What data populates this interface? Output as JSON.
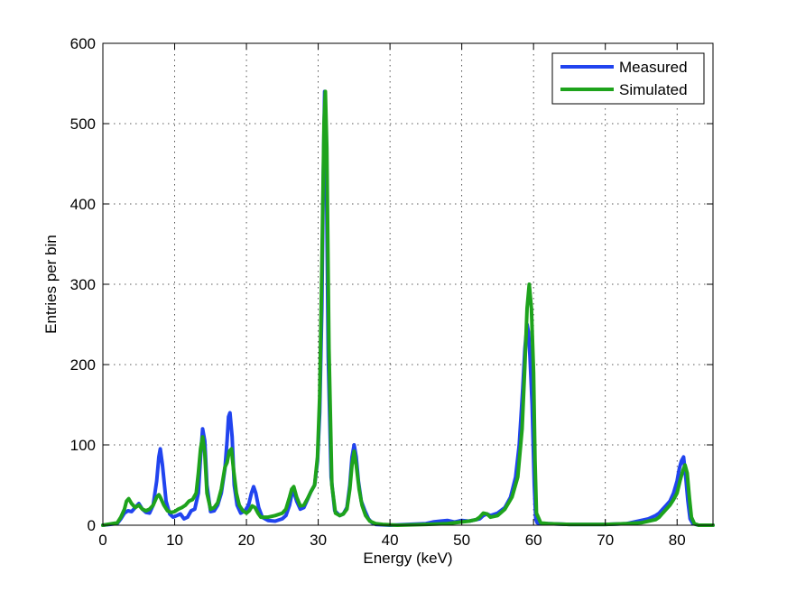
{
  "chart_data": {
    "type": "line",
    "xlabel": "Energy (keV)",
    "ylabel": "Entries per bin",
    "xlim": [
      0,
      85
    ],
    "ylim": [
      0,
      600
    ],
    "xticks": [
      0,
      10,
      20,
      30,
      40,
      50,
      60,
      70,
      80
    ],
    "yticks": [
      0,
      100,
      200,
      300,
      400,
      500,
      600
    ],
    "grid": true,
    "legend_position": "top-right",
    "series": [
      {
        "name": "Measured",
        "color": "#2144ef",
        "x": [
          0,
          2,
          2.5,
          3,
          3.5,
          4,
          4.5,
          5,
          5.5,
          6,
          6.5,
          7,
          7.5,
          7.8,
          8,
          8.3,
          8.8,
          9.3,
          9.8,
          10.3,
          10.8,
          11.3,
          11.8,
          12.3,
          12.8,
          13.3,
          13.6,
          13.9,
          14.2,
          14.5,
          15,
          15.5,
          16,
          16.5,
          17,
          17.3,
          17.5,
          17.7,
          18,
          18.3,
          18.7,
          19.2,
          19.8,
          20.3,
          20.7,
          21,
          21.3,
          21.7,
          22.2,
          23,
          24,
          25,
          25.5,
          26,
          26.3,
          26.6,
          27,
          27.5,
          28,
          28.5,
          29,
          29.5,
          29.9,
          30.2,
          30.5,
          30.7,
          30.9,
          31.1,
          31.4,
          31.8,
          32.3,
          33,
          33.5,
          34,
          34.4,
          34.7,
          35,
          35.3,
          35.6,
          36,
          36.5,
          37,
          37.5,
          38,
          40,
          45,
          46,
          47,
          48,
          49,
          50,
          51,
          52,
          52.5,
          53,
          53.5,
          54,
          55,
          56,
          56.8,
          57.5,
          58,
          58.5,
          58.8,
          59.1,
          59.3,
          59.5,
          59.8,
          60.1,
          60.3,
          60.5,
          61,
          62,
          65,
          70,
          73,
          74,
          75,
          76,
          77,
          77.5,
          78,
          78.5,
          79,
          79.5,
          80,
          80.3,
          80.6,
          80.9,
          81.2,
          81.5,
          81.8,
          82.2,
          83,
          85
        ],
        "y": [
          0,
          2,
          8,
          15,
          18,
          17,
          22,
          27,
          20,
          16,
          15,
          25,
          55,
          85,
          95,
          75,
          30,
          14,
          10,
          12,
          14,
          8,
          10,
          18,
          20,
          40,
          85,
          120,
          105,
          50,
          17,
          18,
          25,
          40,
          70,
          105,
          135,
          140,
          110,
          50,
          25,
          15,
          18,
          25,
          40,
          48,
          40,
          22,
          10,
          6,
          5,
          8,
          12,
          25,
          38,
          42,
          30,
          20,
          22,
          32,
          42,
          50,
          80,
          140,
          270,
          430,
          540,
          480,
          210,
          60,
          18,
          12,
          14,
          22,
          50,
          85,
          100,
          85,
          55,
          30,
          18,
          8,
          3,
          1,
          0,
          2,
          4,
          5,
          6,
          4,
          6,
          5,
          7,
          8,
          12,
          14,
          12,
          15,
          22,
          35,
          60,
          100,
          170,
          220,
          250,
          240,
          210,
          150,
          50,
          8,
          3,
          2,
          2,
          1,
          1,
          2,
          4,
          6,
          8,
          12,
          15,
          20,
          25,
          30,
          40,
          55,
          70,
          80,
          85,
          60,
          30,
          8,
          2,
          0,
          0
        ]
      },
      {
        "name": "Simulated",
        "color": "#1ea31c",
        "x": [
          0,
          2,
          2.5,
          3,
          3.3,
          3.6,
          4,
          4.5,
          5,
          5.5,
          6,
          6.5,
          7,
          7.5,
          7.8,
          8,
          8.5,
          9,
          9.5,
          10,
          10.5,
          11,
          11.5,
          12,
          12.5,
          13,
          13.3,
          13.6,
          13.9,
          14.2,
          14.5,
          15,
          15.5,
          16,
          16.5,
          17,
          17.3,
          17.6,
          17.9,
          18.2,
          18.6,
          19,
          19.5,
          20,
          20.4,
          20.8,
          21.2,
          21.6,
          22,
          23,
          24,
          25,
          25.5,
          26,
          26.3,
          26.6,
          27,
          27.5,
          28,
          28.5,
          29,
          29.5,
          29.9,
          30.2,
          30.5,
          30.8,
          31,
          31.2,
          31.5,
          31.9,
          32.4,
          33,
          33.5,
          34,
          34.4,
          34.7,
          35,
          35.3,
          35.7,
          36.1,
          36.6,
          37.2,
          38,
          39,
          41,
          45,
          48,
          50,
          51,
          52,
          52.5,
          53,
          53.5,
          54,
          55,
          56,
          57,
          57.8,
          58.4,
          58.8,
          59.1,
          59.4,
          59.7,
          60,
          60.2,
          60.4,
          61,
          62,
          65,
          70,
          73,
          75,
          76,
          77,
          77.5,
          78,
          78.5,
          79,
          79.5,
          80,
          80.4,
          80.8,
          81.1,
          81.4,
          81.7,
          82,
          82.4,
          83,
          85
        ],
        "y": [
          0,
          3,
          10,
          20,
          30,
          33,
          27,
          22,
          25,
          20,
          18,
          20,
          25,
          35,
          38,
          35,
          25,
          18,
          16,
          17,
          20,
          22,
          25,
          30,
          32,
          40,
          65,
          95,
          110,
          90,
          40,
          20,
          22,
          28,
          45,
          72,
          78,
          92,
          95,
          70,
          40,
          25,
          18,
          15,
          18,
          24,
          22,
          15,
          10,
          10,
          12,
          15,
          20,
          35,
          45,
          48,
          35,
          24,
          25,
          33,
          42,
          50,
          85,
          160,
          320,
          500,
          540,
          470,
          220,
          50,
          15,
          12,
          14,
          20,
          45,
          75,
          92,
          75,
          45,
          25,
          12,
          5,
          2,
          1,
          0,
          1,
          2,
          4,
          5,
          7,
          10,
          15,
          14,
          10,
          12,
          20,
          35,
          60,
          120,
          200,
          270,
          300,
          270,
          190,
          80,
          15,
          3,
          2,
          1,
          1,
          2,
          3,
          5,
          7,
          10,
          15,
          20,
          25,
          32,
          40,
          55,
          68,
          75,
          65,
          35,
          10,
          2,
          0,
          0
        ]
      }
    ]
  }
}
